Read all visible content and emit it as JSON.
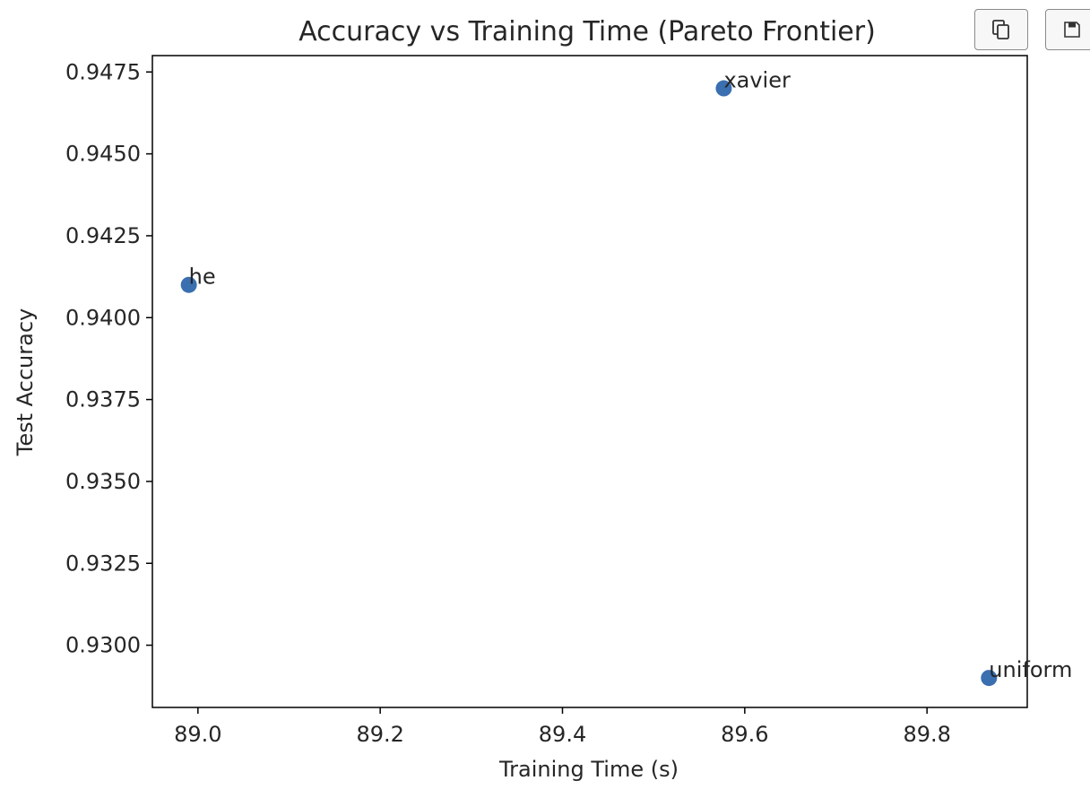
{
  "chart_data": {
    "type": "scatter",
    "title": "Accuracy vs Training Time (Pareto Frontier)",
    "xlabel": "Training Time (s)",
    "ylabel": "Test Accuracy",
    "xlim": [
      88.95,
      89.91
    ],
    "ylim": [
      0.9281,
      0.948
    ],
    "xticks": [
      89.0,
      89.2,
      89.4,
      89.6,
      89.8
    ],
    "xtick_labels": [
      "89.0",
      "89.2",
      "89.4",
      "89.6",
      "89.8"
    ],
    "yticks": [
      0.93,
      0.9325,
      0.935,
      0.9375,
      0.94,
      0.9425,
      0.945,
      0.9475
    ],
    "ytick_labels": [
      "0.9300",
      "0.9325",
      "0.9350",
      "0.9375",
      "0.9400",
      "0.9425",
      "0.9450",
      "0.9475"
    ],
    "grid": false,
    "point_color": "#3a6fb0",
    "points": [
      {
        "label": "he",
        "x": 88.99,
        "y": 0.941
      },
      {
        "label": "xavier",
        "x": 89.577,
        "y": 0.947
      },
      {
        "label": "uniform",
        "x": 89.868,
        "y": 0.929
      }
    ]
  },
  "toolbar": {
    "copy_icon": "copy-icon",
    "save_icon": "save-icon"
  }
}
